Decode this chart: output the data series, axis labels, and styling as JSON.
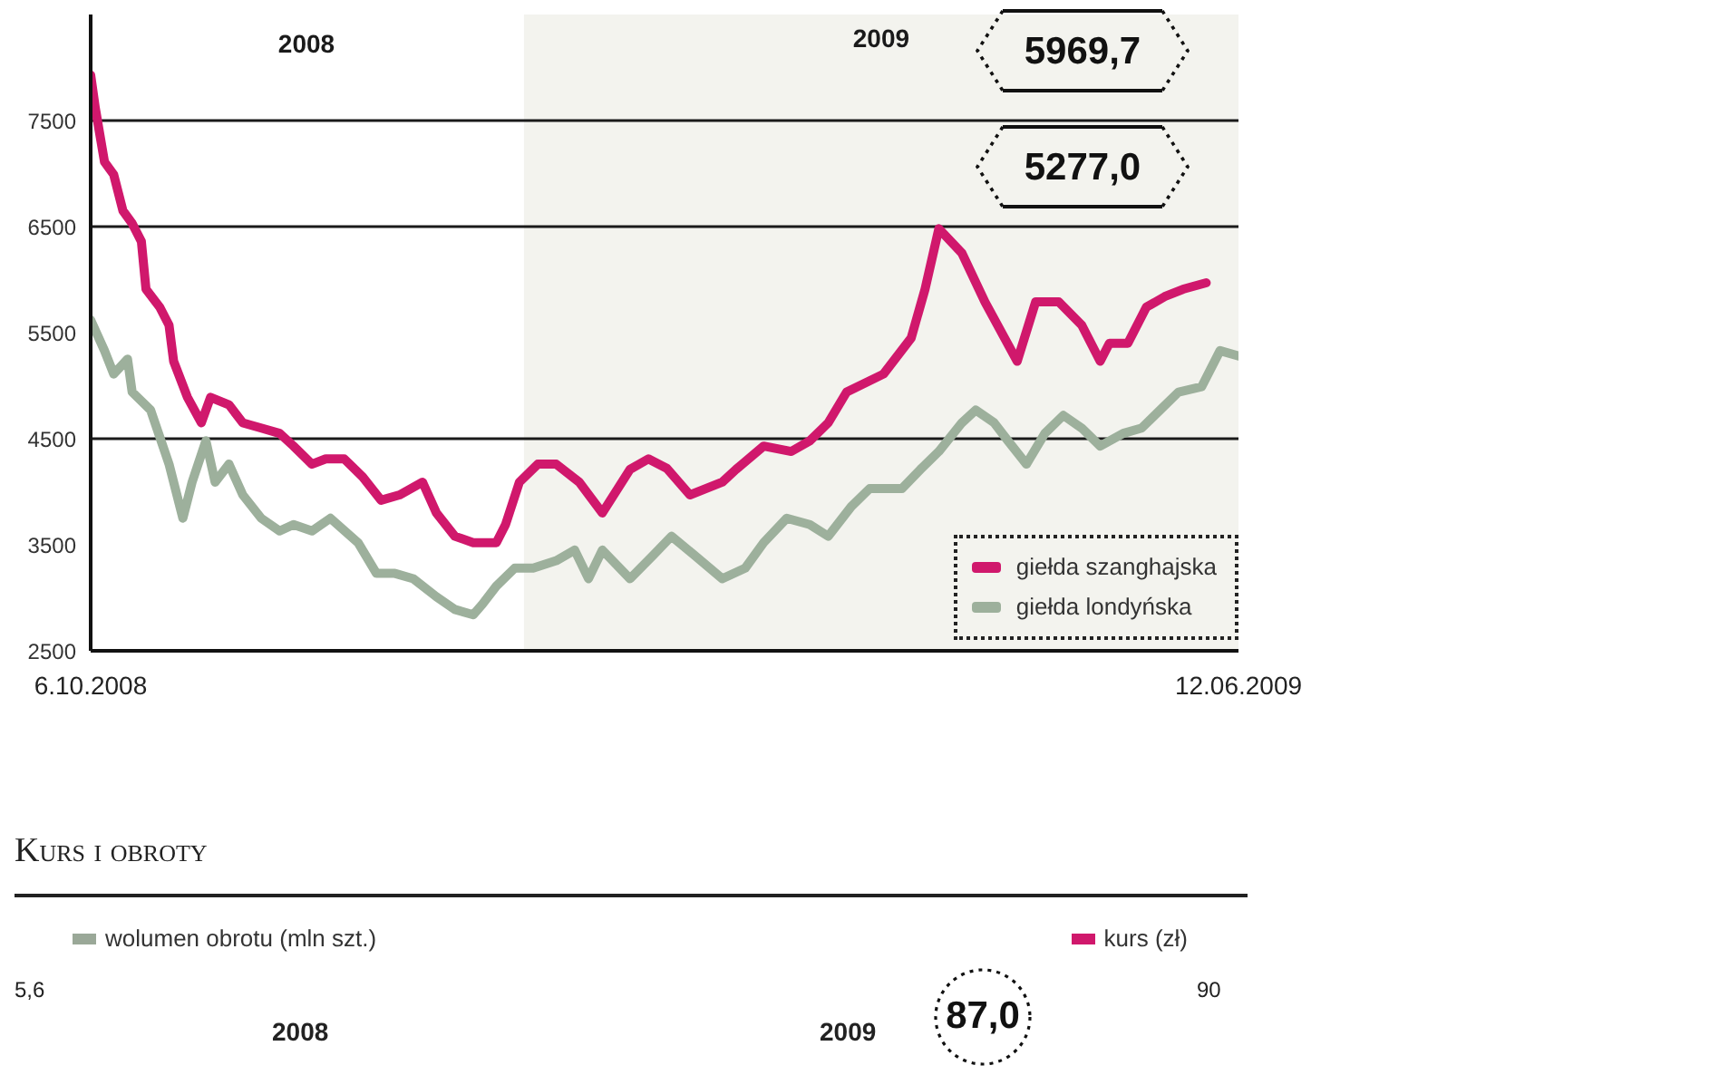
{
  "chart_data": [
    {
      "type": "line",
      "xlim": [
        "2008-10-06",
        "2009-06-12"
      ],
      "xticks": [
        {
          "value": "2008-10-06",
          "label": "6.10.2008"
        },
        {
          "value": "2009-06-12",
          "label": "12.06.2009"
        }
      ],
      "ylim": [
        2500,
        8500
      ],
      "yticks": [
        2500,
        3500,
        4500,
        5500,
        6500,
        7500
      ],
      "legend": "bottom right",
      "series": [
        {
          "name": "giełda szanghajska",
          "color": "#d0186c",
          "x": [
            "2008-10-06",
            "2008-10-07",
            "2008-10-09",
            "2008-10-11",
            "2008-10-13",
            "2008-10-15",
            "2008-10-17",
            "2008-10-18",
            "2008-10-21",
            "2008-10-23",
            "2008-10-24",
            "2008-10-27",
            "2008-10-30",
            "2008-11-01",
            "2008-11-05",
            "2008-11-08",
            "2008-11-12",
            "2008-11-16",
            "2008-11-19",
            "2008-11-23",
            "2008-11-26",
            "2008-11-30",
            "2008-12-04",
            "2008-12-08",
            "2008-12-12",
            "2008-12-17",
            "2008-12-20",
            "2008-12-24",
            "2008-12-28",
            "2009-01-02",
            "2009-01-04",
            "2009-01-07",
            "2009-01-11",
            "2009-01-15",
            "2009-01-20",
            "2009-01-25",
            "2009-01-31",
            "2009-02-04",
            "2009-02-08",
            "2009-02-13",
            "2009-02-20",
            "2009-02-23",
            "2009-03-01",
            "2009-03-07",
            "2009-03-11",
            "2009-03-15",
            "2009-03-19",
            "2009-03-27",
            "2009-04-02",
            "2009-04-05",
            "2009-04-08",
            "2009-04-13",
            "2009-04-18",
            "2009-04-25",
            "2009-04-29",
            "2009-05-04",
            "2009-05-09",
            "2009-05-13",
            "2009-05-15",
            "2009-05-19",
            "2009-05-23",
            "2009-05-27",
            "2009-05-31",
            "2009-06-05"
          ],
          "values": [
            7930,
            7620,
            7110,
            6990,
            6650,
            6530,
            6360,
            5910,
            5740,
            5570,
            5230,
            4890,
            4650,
            4890,
            4820,
            4650,
            4600,
            4550,
            4430,
            4260,
            4310,
            4310,
            4140,
            3920,
            3970,
            4090,
            3800,
            3580,
            3520,
            3520,
            3690,
            4090,
            4260,
            4260,
            4090,
            3800,
            4210,
            4310,
            4220,
            3970,
            4090,
            4210,
            4430,
            4380,
            4480,
            4650,
            4940,
            5110,
            5450,
            5910,
            6480,
            6250,
            5790,
            5230,
            5790,
            5790,
            5570,
            5230,
            5400,
            5400,
            5740,
            5840,
            5910,
            5970
          ]
        },
        {
          "name": "giełda londyńska",
          "color": "#9db09c",
          "x": [
            "2008-10-06",
            "2008-10-09",
            "2008-10-11",
            "2008-10-14",
            "2008-10-15",
            "2008-10-19",
            "2008-10-23",
            "2008-10-26",
            "2008-10-28",
            "2008-10-31",
            "2008-11-02",
            "2008-11-05",
            "2008-11-08",
            "2008-11-12",
            "2008-11-16",
            "2008-11-19",
            "2008-11-23",
            "2008-11-27",
            "2008-12-03",
            "2008-12-07",
            "2008-12-11",
            "2008-12-15",
            "2008-12-20",
            "2008-12-24",
            "2008-12-28",
            "2008-12-30",
            "2009-01-02",
            "2009-01-06",
            "2009-01-10",
            "2009-01-15",
            "2009-01-19",
            "2009-01-22",
            "2009-01-25",
            "2009-01-31",
            "2009-02-05",
            "2009-02-09",
            "2009-02-14",
            "2009-02-20",
            "2009-02-25",
            "2009-03-01",
            "2009-03-06",
            "2009-03-11",
            "2009-03-15",
            "2009-03-20",
            "2009-03-24",
            "2009-03-31",
            "2009-04-04",
            "2009-04-08",
            "2009-04-13",
            "2009-04-16",
            "2009-04-20",
            "2009-04-23",
            "2009-04-27",
            "2009-05-01",
            "2009-05-05",
            "2009-05-09",
            "2009-05-13",
            "2009-05-18",
            "2009-05-22",
            "2009-05-26",
            "2009-05-30",
            "2009-06-04",
            "2009-06-08",
            "2009-06-12"
          ],
          "values": [
            5620,
            5330,
            5110,
            5250,
            4940,
            4770,
            4260,
            3750,
            4090,
            4480,
            4090,
            4260,
            3970,
            3750,
            3630,
            3690,
            3630,
            3750,
            3520,
            3230,
            3230,
            3180,
            3010,
            2890,
            2840,
            2940,
            3110,
            3280,
            3280,
            3350,
            3450,
            3180,
            3450,
            3180,
            3400,
            3580,
            3400,
            3180,
            3280,
            3520,
            3750,
            3690,
            3580,
            3860,
            4030,
            4030,
            4210,
            4380,
            4650,
            4770,
            4650,
            4480,
            4260,
            4550,
            4720,
            4600,
            4430,
            4550,
            4600,
            4770,
            4940,
            4990,
            5330,
            5280
          ]
        }
      ],
      "bands": [
        {
          "axis": "x",
          "from": "2009-01-08",
          "to": "2009-06-12",
          "label": "2009",
          "color": "#f3f3ee"
        }
      ],
      "ref_lines": [
        {
          "axis": "y",
          "value": 7500,
          "color": "#1a1a1a"
        },
        {
          "axis": "y",
          "value": 6500,
          "color": "#1a1a1a"
        },
        {
          "axis": "y",
          "value": 4500,
          "color": "#1a1a1a"
        }
      ],
      "annotations": [
        "2008",
        "5969,7",
        "5277,0"
      ]
    },
    {
      "type": "other",
      "title": "Kurs i obroty",
      "legend": "top",
      "series": [
        {
          "name": "wolumen obrotu (mln szt.)",
          "color": "#9aa898"
        },
        {
          "name": "kurs (zł)",
          "color": "#d0186c"
        }
      ],
      "annotations": [
        "5,6",
        "90",
        "2008",
        "2009",
        "87,0"
      ]
    }
  ]
}
